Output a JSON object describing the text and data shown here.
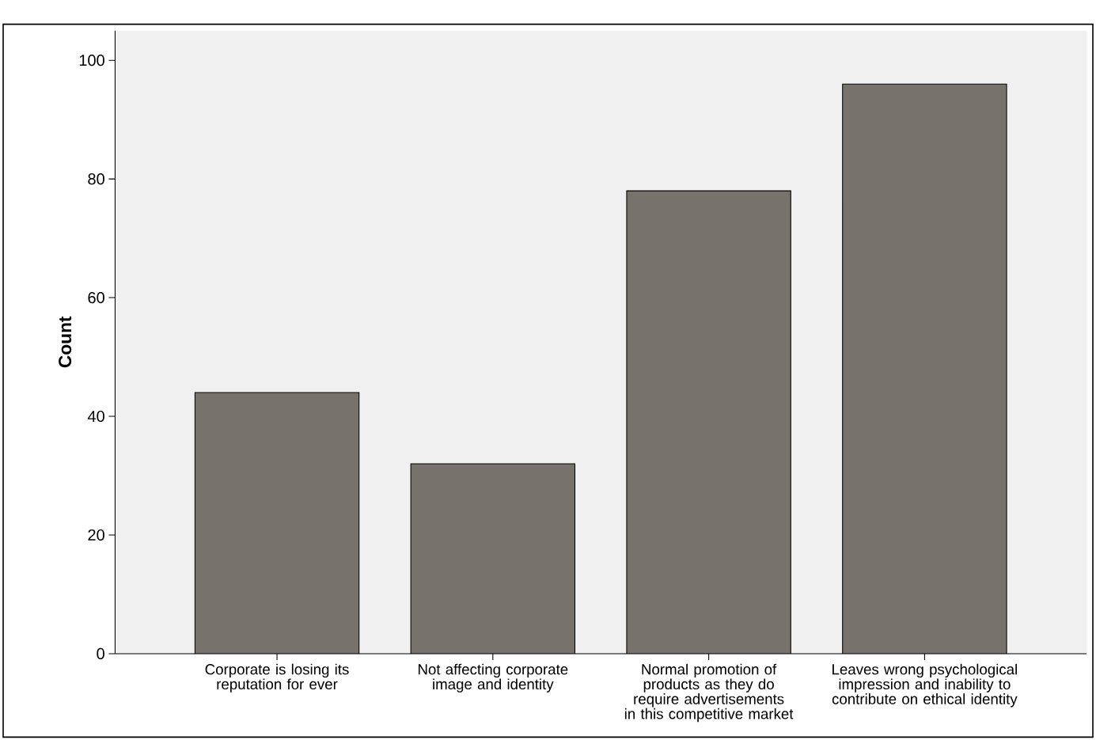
{
  "chart_data": {
    "type": "bar",
    "ylabel": "Count",
    "categories": [
      "Corporate is losing its reputation for ever",
      "Not affecting corporate image and identity",
      "Normal promotion of products as they do require advertisements in this competitive market",
      "Leaves wrong psychological impression and inability to contribute on ethical identity"
    ],
    "values": [
      44,
      32,
      78,
      96
    ],
    "color": "#77726c",
    "ylim": [
      0,
      105
    ],
    "yticks": [
      0,
      20,
      40,
      60,
      80,
      100
    ],
    "grid": false
  }
}
